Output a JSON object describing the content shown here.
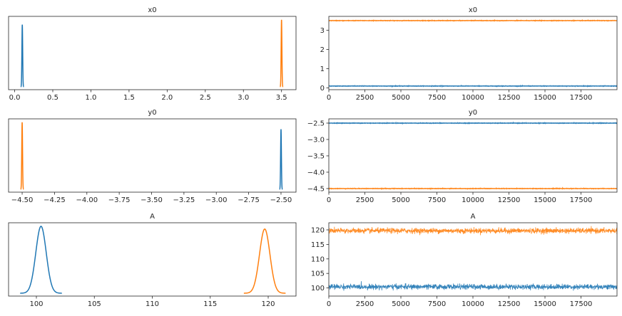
{
  "colors": {
    "chain_0": "#1f77b4",
    "chain_1": "#ff7f0e"
  },
  "chart_data": [
    {
      "type": "line",
      "kind": "kde",
      "title": "x0",
      "xlim": [
        -0.08,
        3.69
      ],
      "xticks": [
        "0.0",
        "0.5",
        "1.0",
        "1.5",
        "2.0",
        "2.5",
        "3.0",
        "3.5"
      ],
      "xtick_values": [
        0,
        0.5,
        1,
        1.5,
        2,
        2.5,
        3,
        3.5
      ],
      "series": [
        {
          "mean": 0.1,
          "sd": 0.005,
          "peak": 0.9
        },
        {
          "mean": 3.5,
          "sd": 0.005,
          "peak": 0.97
        }
      ]
    },
    {
      "type": "line",
      "kind": "trace",
      "title": "x0",
      "xlim": [
        0,
        19999
      ],
      "ylim": [
        -0.09,
        3.72
      ],
      "xticks": [
        "0",
        "2500",
        "5000",
        "7500",
        "10000",
        "12500",
        "15000",
        "17500"
      ],
      "xtick_values": [
        0,
        2500,
        5000,
        7500,
        10000,
        12500,
        15000,
        17500
      ],
      "yticks": [
        "0",
        "1",
        "2",
        "3"
      ],
      "ytick_values": [
        0,
        1,
        2,
        3
      ],
      "series": [
        {
          "mean": 0.1,
          "sd": 0.005
        },
        {
          "mean": 3.5,
          "sd": 0.005
        }
      ]
    },
    {
      "type": "line",
      "kind": "kde",
      "title": "y0",
      "xlim": [
        -4.605,
        -2.384
      ],
      "xticks": [
        "−4.50",
        "−4.25",
        "−4.00",
        "−3.75",
        "−3.50",
        "−3.25",
        "−3.00",
        "−2.75",
        "−2.50"
      ],
      "xtick_values": [
        -4.5,
        -4.25,
        -4,
        -3.75,
        -3.5,
        -3.25,
        -3,
        -2.75,
        -2.5
      ],
      "series": [
        {
          "mean": -2.5,
          "sd": 0.003,
          "peak": 0.87
        },
        {
          "mean": -4.5,
          "sd": 0.003,
          "peak": 0.97
        }
      ]
    },
    {
      "type": "line",
      "kind": "trace",
      "title": "y0",
      "xlim": [
        0,
        19999
      ],
      "ylim": [
        -4.61,
        -2.37
      ],
      "xticks": [
        "0",
        "2500",
        "5000",
        "7500",
        "10000",
        "12500",
        "15000",
        "17500"
      ],
      "xtick_values": [
        0,
        2500,
        5000,
        7500,
        10000,
        12500,
        15000,
        17500
      ],
      "yticks": [
        "−2.5",
        "−3.0",
        "−3.5",
        "−4.0",
        "−4.5"
      ],
      "ytick_values": [
        -2.5,
        -3,
        -3.5,
        -4,
        -4.5
      ],
      "series": [
        {
          "mean": -2.5,
          "sd": 0.003
        },
        {
          "mean": -4.5,
          "sd": 0.003
        }
      ]
    },
    {
      "type": "line",
      "kind": "kde",
      "title": "A",
      "xlim": [
        97.6,
        122.4
      ],
      "xticks": [
        "100",
        "105",
        "110",
        "115",
        "120"
      ],
      "xtick_values": [
        100,
        105,
        110,
        115,
        120
      ],
      "series": [
        {
          "mean": 100.4,
          "sd": 0.45,
          "peak": 0.97
        },
        {
          "mean": 119.7,
          "sd": 0.45,
          "peak": 0.93
        }
      ]
    },
    {
      "type": "line",
      "kind": "trace",
      "title": "A",
      "xlim": [
        0,
        19999
      ],
      "ylim": [
        97.2,
        122.45
      ],
      "xticks": [
        "0",
        "2500",
        "5000",
        "7500",
        "10000",
        "12500",
        "15000",
        "17500"
      ],
      "xtick_values": [
        0,
        2500,
        5000,
        7500,
        10000,
        12500,
        15000,
        17500
      ],
      "yticks": [
        "100",
        "105",
        "110",
        "115",
        "120"
      ],
      "ytick_values": [
        100,
        105,
        110,
        115,
        120
      ],
      "series": [
        {
          "mean": 100.4,
          "sd": 0.45
        },
        {
          "mean": 119.7,
          "sd": 0.45
        }
      ]
    }
  ]
}
